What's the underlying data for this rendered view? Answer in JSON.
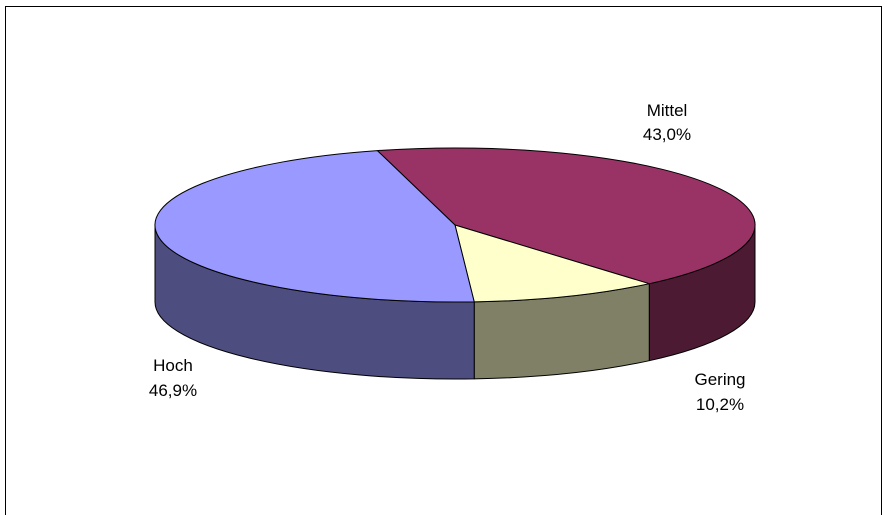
{
  "chart_data": {
    "type": "pie",
    "title": "",
    "three_d": true,
    "legend": "none",
    "slices": [
      {
        "name": "Mittel",
        "value": 43.0,
        "label": "Mittel",
        "value_label": "43,0%",
        "top_color": "#993366",
        "side_color": "#4d1a33"
      },
      {
        "name": "Gering",
        "value": 10.2,
        "label": "Gering",
        "value_label": "10,2%",
        "top_color": "#ffffcc",
        "side_color": "#808066"
      },
      {
        "name": "Hoch",
        "value": 46.9,
        "label": "Hoch",
        "value_label": "46,9%",
        "top_color": "#9999ff",
        "side_color": "#4d4d80"
      }
    ]
  }
}
